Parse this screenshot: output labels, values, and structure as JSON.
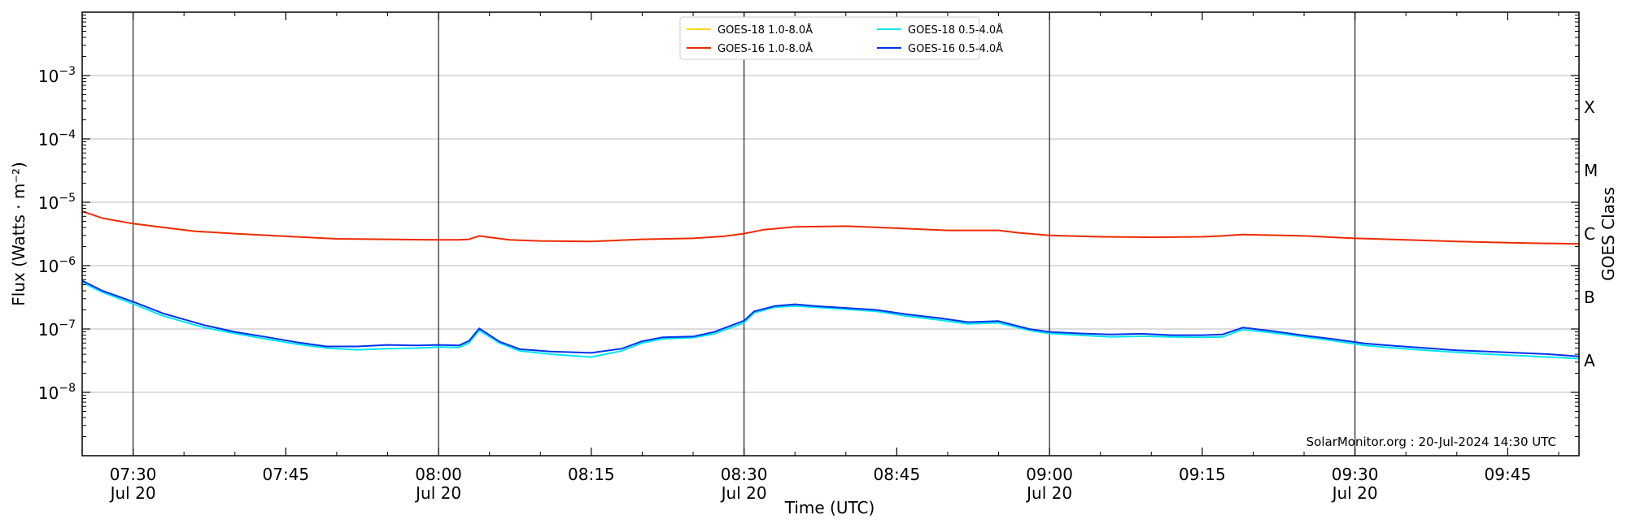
{
  "chart_data": {
    "type": "line",
    "title": "",
    "xlabel": "Time (UTC)",
    "ylabel": "Flux (Watts · m⁻²)",
    "ylabel_right": "GOES Class",
    "y_scale": "log",
    "ylim": [
      1e-09,
      0.01
    ],
    "xlim": [
      "07:25",
      "09:52"
    ],
    "grid": "horizontal",
    "legend_position": "top-center",
    "credit": "SolarMonitor.org : 20-Jul-2024 14:30 UTC",
    "y_ticks": [
      {
        "value": 1e-08,
        "base": "10",
        "exp": "−8"
      },
      {
        "value": 1e-07,
        "base": "10",
        "exp": "−7"
      },
      {
        "value": 1e-06,
        "base": "10",
        "exp": "−6"
      },
      {
        "value": 1e-05,
        "base": "10",
        "exp": "−5"
      },
      {
        "value": 0.0001,
        "base": "10",
        "exp": "−4"
      },
      {
        "value": 0.001,
        "base": "10",
        "exp": "−3"
      }
    ],
    "goes_classes": [
      {
        "label": "A",
        "value": 3.16e-08
      },
      {
        "label": "B",
        "value": 3.16e-07
      },
      {
        "label": "C",
        "value": 3.16e-06
      },
      {
        "label": "M",
        "value": 3.16e-05
      },
      {
        "label": "X",
        "value": 0.000316
      }
    ],
    "x_ticks": [
      {
        "time": "07:30",
        "label": "07:30",
        "date": "Jul 20"
      },
      {
        "time": "07:45",
        "label": "07:45",
        "date": ""
      },
      {
        "time": "08:00",
        "label": "08:00",
        "date": "Jul 20"
      },
      {
        "time": "08:15",
        "label": "08:15",
        "date": ""
      },
      {
        "time": "08:30",
        "label": "08:30",
        "date": "Jul 20"
      },
      {
        "time": "08:45",
        "label": "08:45",
        "date": ""
      },
      {
        "time": "09:00",
        "label": "09:00",
        "date": "Jul 20"
      },
      {
        "time": "09:15",
        "label": "09:15",
        "date": ""
      },
      {
        "time": "09:30",
        "label": "09:30",
        "date": "Jul 20"
      },
      {
        "time": "09:45",
        "label": "09:45",
        "date": ""
      }
    ],
    "vertical_lines": [
      "07:30",
      "08:00",
      "08:30",
      "09:00",
      "09:30"
    ],
    "series": [
      {
        "name": "GOES-18 1.0-8.0Å",
        "color": "#ffd700",
        "x": [],
        "values": []
      },
      {
        "name": "GOES-16 1.0-8.0Å",
        "color": "#ee2a00",
        "x": [
          "07:25",
          "07:27",
          "07:30",
          "07:33",
          "07:36",
          "07:40",
          "07:45",
          "07:50",
          "07:55",
          "08:00",
          "08:02",
          "08:03",
          "08:04",
          "08:05",
          "08:07",
          "08:10",
          "08:15",
          "08:20",
          "08:25",
          "08:28",
          "08:30",
          "08:32",
          "08:35",
          "08:40",
          "08:45",
          "08:50",
          "08:55",
          "08:57",
          "09:00",
          "09:05",
          "09:10",
          "09:15",
          "09:17",
          "09:19",
          "09:25",
          "09:30",
          "09:35",
          "09:40",
          "09:45",
          "09:52"
        ],
        "values": [
          7.2e-06,
          5.6e-06,
          4.6e-06,
          4e-06,
          3.5e-06,
          3.2e-06,
          2.9e-06,
          2.65e-06,
          2.6e-06,
          2.55e-06,
          2.55e-06,
          2.6e-06,
          2.95e-06,
          2.8e-06,
          2.55e-06,
          2.45e-06,
          2.4e-06,
          2.6e-06,
          2.7e-06,
          2.9e-06,
          3.2e-06,
          3.7e-06,
          4.1e-06,
          4.2e-06,
          3.9e-06,
          3.6e-06,
          3.6e-06,
          3.3e-06,
          3e-06,
          2.85e-06,
          2.8e-06,
          2.85e-06,
          2.95e-06,
          3.1e-06,
          2.95e-06,
          2.7e-06,
          2.55e-06,
          2.4e-06,
          2.3e-06,
          2.2e-06
        ]
      },
      {
        "name": "GOES-18 0.5-4.0Å",
        "color": "#00e5ee",
        "x": [
          "07:25",
          "07:27",
          "07:30",
          "07:33",
          "07:37",
          "07:40",
          "07:43",
          "07:46",
          "07:49",
          "07:52",
          "07:55",
          "07:58",
          "08:00",
          "08:02",
          "08:03",
          "08:04",
          "08:06",
          "08:08",
          "08:11",
          "08:15",
          "08:18",
          "08:20",
          "08:22",
          "08:25",
          "08:27",
          "08:30",
          "08:31",
          "08:33",
          "08:35",
          "08:37",
          "08:40",
          "08:43",
          "08:46",
          "08:49",
          "08:52",
          "08:55",
          "08:58",
          "09:00",
          "09:03",
          "09:06",
          "09:09",
          "09:12",
          "09:15",
          "09:17",
          "09:19",
          "09:22",
          "09:25",
          "09:28",
          "09:31",
          "09:34",
          "09:37",
          "09:40",
          "09:43",
          "09:46",
          "09:49",
          "09:52"
        ],
        "values": [
          5.5e-07,
          3.8e-07,
          2.5e-07,
          1.6e-07,
          1.05e-07,
          8.5e-08,
          7e-08,
          5.8e-08,
          5e-08,
          4.7e-08,
          4.9e-08,
          5e-08,
          5.2e-08,
          5.1e-08,
          6e-08,
          9.5e-08,
          6e-08,
          4.5e-08,
          4e-08,
          3.6e-08,
          4.5e-08,
          6e-08,
          7e-08,
          7.3e-08,
          8.3e-08,
          1.25e-07,
          1.8e-07,
          2.2e-07,
          2.3e-07,
          2.2e-07,
          2.05e-07,
          1.9e-07,
          1.6e-07,
          1.4e-07,
          1.2e-07,
          1.25e-07,
          9.5e-08,
          8.5e-08,
          8e-08,
          7.5e-08,
          7.7e-08,
          7.5e-08,
          7.4e-08,
          7.5e-08,
          9.8e-08,
          8.7e-08,
          7.5e-08,
          6.5e-08,
          5.5e-08,
          5e-08,
          4.6e-08,
          4.3e-08,
          4e-08,
          3.8e-08,
          3.6e-08,
          3.4e-08
        ]
      },
      {
        "name": "GOES-16 0.5-4.0Å",
        "color": "#0033ee",
        "x": [
          "07:25",
          "07:27",
          "07:30",
          "07:33",
          "07:37",
          "07:40",
          "07:43",
          "07:46",
          "07:49",
          "07:52",
          "07:55",
          "07:58",
          "08:00",
          "08:02",
          "08:03",
          "08:04",
          "08:06",
          "08:08",
          "08:11",
          "08:15",
          "08:18",
          "08:20",
          "08:22",
          "08:25",
          "08:27",
          "08:30",
          "08:31",
          "08:33",
          "08:35",
          "08:37",
          "08:40",
          "08:43",
          "08:46",
          "08:49",
          "08:52",
          "08:55",
          "08:58",
          "09:00",
          "09:03",
          "09:06",
          "09:09",
          "09:12",
          "09:15",
          "09:17",
          "09:19",
          "09:22",
          "09:25",
          "09:28",
          "09:31",
          "09:34",
          "09:37",
          "09:40",
          "09:43",
          "09:46",
          "09:49",
          "09:52"
        ],
        "values": [
          5.8e-07,
          4e-07,
          2.7e-07,
          1.75e-07,
          1.15e-07,
          9e-08,
          7.5e-08,
          6.2e-08,
          5.3e-08,
          5.3e-08,
          5.6e-08,
          5.5e-08,
          5.6e-08,
          5.5e-08,
          6.5e-08,
          1.02e-07,
          6.3e-08,
          4.8e-08,
          4.4e-08,
          4.2e-08,
          4.9e-08,
          6.4e-08,
          7.4e-08,
          7.6e-08,
          8.9e-08,
          1.35e-07,
          1.9e-07,
          2.3e-07,
          2.45e-07,
          2.3e-07,
          2.15e-07,
          2e-07,
          1.7e-07,
          1.5e-07,
          1.28e-07,
          1.33e-07,
          1e-07,
          9e-08,
          8.5e-08,
          8.2e-08,
          8.4e-08,
          8e-08,
          8e-08,
          8.2e-08,
          1.05e-07,
          9.2e-08,
          7.9e-08,
          6.9e-08,
          5.9e-08,
          5.4e-08,
          5e-08,
          4.6e-08,
          4.4e-08,
          4.2e-08,
          4e-08,
          3.7e-08
        ]
      }
    ]
  }
}
